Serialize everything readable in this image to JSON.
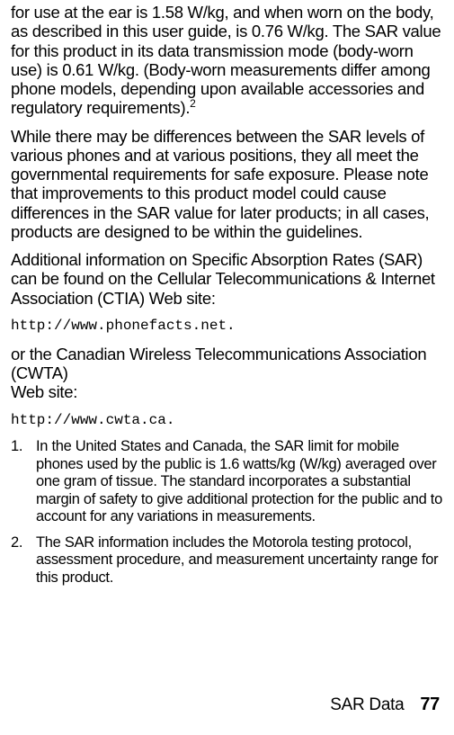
{
  "paragraphs": {
    "p1_pre": "for use at the ear is ",
    "p1_v1": "1.58",
    "p1_mid1": " W/kg, and when worn on the body, as described in this user guide, is ",
    "p1_v2": "0.76",
    "p1_mid2": " W/kg. The SAR value for this product in its data transmission mode (body-worn use) is ",
    "p1_v3": "0.61",
    "p1_post": " W/kg. (Body-worn measurements differ among phone models, depending upon available accessories and regulatory requirements).",
    "p1_sup": "2",
    "p2": "While there may be differences between the SAR levels of various phones and at various positions, they all meet the governmental requirements for safe exposure. Please note that improvements to this product model could cause differences in the SAR value for later products; in all cases, products are designed to be within the guidelines.",
    "p3": "Additional information on Specific Absorption Rates (SAR) can be found on the Cellular Telecommunications & Internet Association (CTIA) Web site:",
    "url1": "http://www.phonefacts.net.",
    "p4_a": "or the Canadian Wireless Telecommunications Association (CWTA)",
    "p4_b": "Web site:",
    "url2": "http://www.cwta.ca."
  },
  "notes": [
    "In the United States and Canada, the SAR limit for mobile phones used by the public is 1.6 watts/kg (W/kg) averaged over one gram of tissue. The standard incorporates a substantial margin of safety to give additional protection for the public and to account for any variations in measurements.",
    "The SAR information includes the Motorola testing protocol, assessment procedure, and measurement uncertainty range for this product."
  ],
  "footer": {
    "label": "SAR Data",
    "page": "77"
  }
}
